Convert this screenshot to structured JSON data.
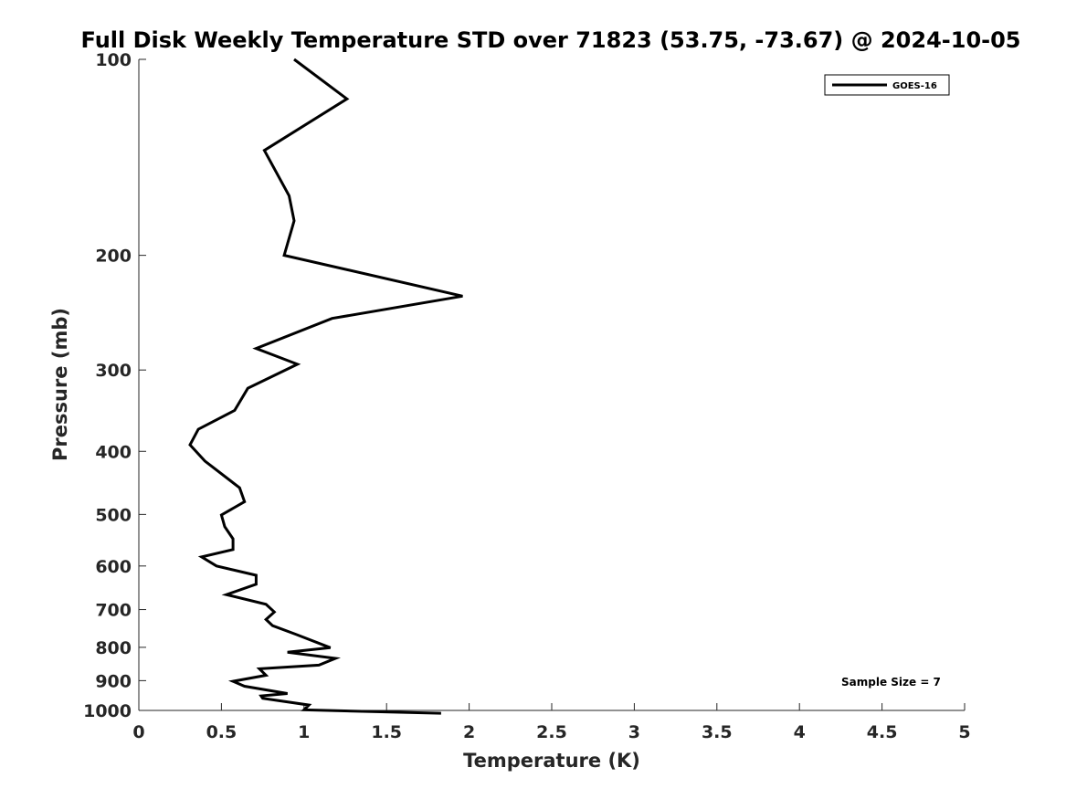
{
  "chart_data": {
    "type": "line",
    "title": "Full Disk Weekly Temperature STD over 71823 (53.75, -73.67) @ 2024-10-05",
    "xlabel": "Temperature (K)",
    "ylabel": "Pressure (mb)",
    "xlim": [
      0,
      5
    ],
    "ylim": [
      1000,
      100
    ],
    "y_scale": "log",
    "y_direction": "reversed",
    "grid": false,
    "legend_position": "top-right",
    "x_ticks": [
      "0",
      "0.5",
      "1",
      "1.5",
      "2",
      "2.5",
      "3",
      "3.5",
      "4",
      "4.5",
      "5"
    ],
    "y_ticks": [
      "100",
      "200",
      "300",
      "400",
      "500",
      "600",
      "700",
      "800",
      "900",
      "1000"
    ],
    "series": [
      {
        "name": "GOES-16",
        "color": "#000000",
        "x": [
          0.94,
          1.26,
          0.76,
          0.91,
          0.94,
          0.88,
          1.96,
          1.17,
          0.71,
          0.96,
          0.66,
          0.58,
          0.36,
          0.31,
          0.4,
          0.61,
          0.64,
          0.5,
          0.52,
          0.57,
          0.57,
          0.38,
          0.47,
          0.71,
          0.71,
          0.53,
          0.77,
          0.82,
          0.77,
          0.81,
          0.95,
          1.16,
          0.9,
          1.19,
          1.09,
          0.73,
          0.77,
          0.57,
          0.64,
          0.9,
          0.74,
          0.75,
          1.03,
          1.0,
          1.83
        ],
        "y": [
          100,
          115,
          138,
          162,
          177,
          200,
          231,
          250,
          278,
          294,
          320,
          346,
          370,
          391,
          414,
          455,
          478,
          501,
          522,
          545,
          566,
          581,
          600,
          620,
          640,
          664,
          687,
          706,
          725,
          741,
          764,
          801,
          814,
          832,
          852,
          863,
          883,
          902,
          918,
          942,
          950,
          958,
          981,
          998,
          1010
        ]
      }
    ],
    "annotations": [
      "Sample Size = 7"
    ]
  }
}
